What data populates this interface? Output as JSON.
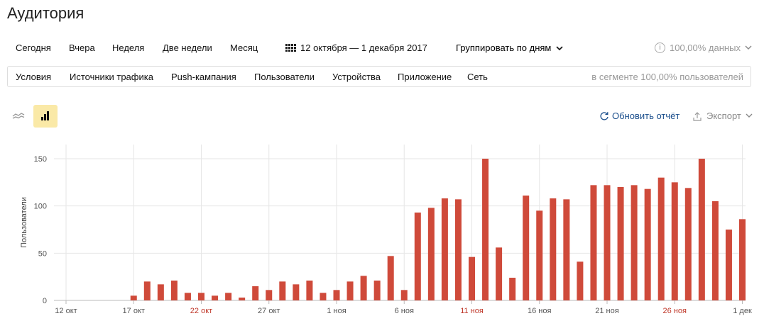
{
  "page": {
    "title": "Аудитория"
  },
  "toolbar": {
    "periods": [
      "Сегодня",
      "Вчера",
      "Неделя",
      "Две недели",
      "Месяц"
    ],
    "date_range": "12 октября — 1 декабря 2017",
    "grouping": "Группировать по дням",
    "accuracy": "100,00% данных"
  },
  "segment": {
    "tabs": [
      "Условия",
      "Источники трафика",
      "Push-кампания",
      "Пользователи",
      "Устройства",
      "Приложение",
      "Сеть"
    ],
    "summary": "в сегменте 100,00% пользователей"
  },
  "actions": {
    "refresh": "Обновить отчёт",
    "export": "Экспорт"
  },
  "icons": [
    "line-chart-icon",
    "bar-chart-icon",
    "refresh-icon",
    "export-icon",
    "calendar-grid-icon",
    "info-icon",
    "chevron-down-icon"
  ],
  "colors": {
    "bar": "#cf4a3a",
    "active_tool": "#fae9a7",
    "link": "#1a4e8c",
    "weekend_label": "#c0392b"
  },
  "chart_data": {
    "type": "bar",
    "ylabel": "Пользователи",
    "ylim": [
      0,
      150
    ],
    "yticks": [
      0,
      50,
      100,
      150
    ],
    "grid": true,
    "x_tick_labels": [
      {
        "index": 0,
        "label": "12 окт",
        "red": false
      },
      {
        "index": 5,
        "label": "17 окт",
        "red": false
      },
      {
        "index": 10,
        "label": "22 окт",
        "red": true
      },
      {
        "index": 15,
        "label": "27 окт",
        "red": false
      },
      {
        "index": 20,
        "label": "1 ноя",
        "red": false
      },
      {
        "index": 25,
        "label": "6 ноя",
        "red": false
      },
      {
        "index": 30,
        "label": "11 ноя",
        "red": true
      },
      {
        "index": 35,
        "label": "16 ноя",
        "red": false
      },
      {
        "index": 40,
        "label": "21 ноя",
        "red": false
      },
      {
        "index": 45,
        "label": "26 ноя",
        "red": true
      },
      {
        "index": 50,
        "label": "1 дек",
        "red": false
      }
    ],
    "categories": [
      "12 окт",
      "13 окт",
      "14 окт",
      "15 окт",
      "16 окт",
      "17 окт",
      "18 окт",
      "19 окт",
      "20 окт",
      "21 окт",
      "22 окт",
      "23 окт",
      "24 окт",
      "25 окт",
      "26 окт",
      "27 окт",
      "28 окт",
      "29 окт",
      "30 окт",
      "31 окт",
      "1 ноя",
      "2 ноя",
      "3 ноя",
      "4 ноя",
      "5 ноя",
      "6 ноя",
      "7 ноя",
      "8 ноя",
      "9 ноя",
      "10 ноя",
      "11 ноя",
      "12 ноя",
      "13 ноя",
      "14 ноя",
      "15 ноя",
      "16 ноя",
      "17 ноя",
      "18 ноя",
      "19 ноя",
      "20 ноя",
      "21 ноя",
      "22 ноя",
      "23 ноя",
      "24 ноя",
      "25 ноя",
      "26 ноя",
      "27 ноя",
      "28 ноя",
      "29 ноя",
      "30 ноя",
      "1 дек"
    ],
    "values": [
      0,
      0,
      0,
      0,
      0,
      5,
      20,
      17,
      21,
      8,
      8,
      5,
      8,
      3,
      15,
      11,
      20,
      17,
      21,
      8,
      11,
      20,
      26,
      21,
      47,
      11,
      93,
      98,
      108,
      107,
      46,
      150,
      56,
      24,
      111,
      95,
      108,
      107,
      41,
      122,
      122,
      120,
      122,
      118,
      130,
      125,
      119,
      150,
      105,
      75,
      86
    ]
  }
}
